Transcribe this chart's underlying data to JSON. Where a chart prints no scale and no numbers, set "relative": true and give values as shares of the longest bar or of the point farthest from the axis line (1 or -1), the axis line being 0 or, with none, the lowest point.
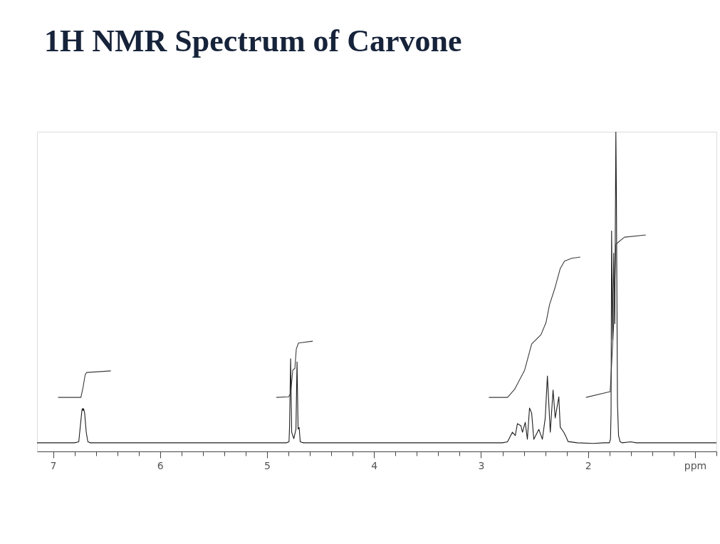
{
  "chart_data": {
    "type": "line",
    "title": "1H NMR Spectrum of Carvone",
    "relative": true,
    "xlim": [
      7.15,
      0.8
    ],
    "xticks": [
      7,
      {
        "value": 6.8,
        "label": null
      },
      {
        "value": 6.6,
        "label": null
      },
      {
        "value": 6.4,
        "label": null
      },
      {
        "value": 6.2,
        "label": null
      },
      6,
      {
        "value": 5.8,
        "label": null
      },
      {
        "value": 5.6,
        "label": null
      },
      {
        "value": 5.4,
        "label": null
      },
      {
        "value": 5.2,
        "label": null
      },
      5,
      {
        "value": 4.8,
        "label": null
      },
      {
        "value": 4.6,
        "label": null
      },
      {
        "value": 4.4,
        "label": null
      },
      {
        "value": 4.2,
        "label": null
      },
      4,
      {
        "value": 3.8,
        "label": null
      },
      {
        "value": 3.6,
        "label": null
      },
      {
        "value": 3.4,
        "label": null
      },
      {
        "value": 3.2,
        "label": null
      },
      3,
      {
        "value": 2.8,
        "label": null
      },
      {
        "value": 2.6,
        "label": null
      },
      {
        "value": 2.4,
        "label": null
      },
      {
        "value": 2.2,
        "label": null
      },
      2,
      {
        "value": 1.8,
        "label": null
      },
      {
        "value": 1.6,
        "label": null
      },
      {
        "value": 1.4,
        "label": null
      },
      {
        "value": 1.2,
        "label": null
      },
      {
        "value": 1,
        "label": "ppm"
      },
      {
        "value": 0.8,
        "label": null
      }
    ],
    "grid": false,
    "series": [
      {
        "color": "#1e1e1e",
        "x": [
          7.15,
          6.8,
          6.76,
          6.745,
          6.73,
          6.725,
          6.72,
          6.715,
          6.705,
          6.69,
          6.675,
          6.65,
          4.82,
          4.795,
          4.79,
          4.78,
          4.77,
          4.75,
          4.73,
          4.72,
          4.71,
          4.7,
          4.69,
          4.66,
          2.8,
          2.753,
          2.707,
          2.68,
          2.66,
          2.627,
          2.613,
          2.587,
          2.567,
          2.547,
          2.527,
          2.507,
          2.46,
          2.427,
          2.4,
          2.38,
          2.353,
          2.327,
          2.307,
          2.273,
          2.26,
          2.227,
          2.207,
          2.187,
          2.1,
          1.95,
          1.85,
          1.8,
          1.79,
          1.785,
          1.78,
          1.77,
          1.76,
          1.75,
          1.74,
          1.735,
          1.725,
          1.715,
          1.7,
          1.68,
          1.6,
          1.55,
          0.8
        ],
        "values": [
          0.027,
          0.027,
          0.03,
          0.08,
          0.13,
          0.134,
          0.128,
          0.134,
          0.12,
          0.06,
          0.03,
          0.027,
          0.027,
          0.03,
          0.075,
          0.29,
          0.06,
          0.04,
          0.07,
          0.28,
          0.07,
          0.075,
          0.03,
          0.027,
          0.027,
          0.03,
          0.06,
          0.05,
          0.087,
          0.08,
          0.06,
          0.091,
          0.038,
          0.136,
          0.12,
          0.038,
          0.069,
          0.038,
          0.105,
          0.236,
          0.06,
          0.192,
          0.105,
          0.171,
          0.076,
          0.06,
          0.047,
          0.031,
          0.027,
          0.025,
          0.027,
          0.027,
          0.04,
          0.12,
          0.69,
          0.35,
          0.62,
          0.4,
          1.0,
          0.8,
          0.15,
          0.05,
          0.03,
          0.027,
          0.03,
          0.027,
          0.027
        ]
      },
      {
        "color": "#3c3c3c",
        "x": [
          6.953,
          6.74,
          6.72,
          6.7,
          6.687,
          6.46
        ],
        "values": [
          0.169,
          0.169,
          0.2,
          0.24,
          0.247,
          0.252
        ]
      },
      {
        "color": "#3c3c3c",
        "x": [
          4.913,
          4.8,
          4.78,
          4.76,
          4.74,
          4.727,
          4.707,
          4.573
        ],
        "values": [
          0.169,
          0.171,
          0.18,
          0.254,
          0.26,
          0.32,
          0.339,
          0.345
        ]
      },
      {
        "color": "#3c3c3c",
        "x": [
          2.927,
          2.753,
          2.687,
          2.593,
          2.527,
          2.44,
          2.393,
          2.36,
          2.307,
          2.26,
          2.22,
          2.153,
          2.073
        ],
        "values": [
          0.169,
          0.169,
          0.194,
          0.254,
          0.336,
          0.365,
          0.403,
          0.459,
          0.514,
          0.572,
          0.595,
          0.604,
          0.608
        ]
      },
      {
        "color": "#3c3c3c",
        "x": [
          2.02,
          1.793,
          1.76,
          1.74,
          1.66,
          1.46
        ],
        "values": [
          0.169,
          0.187,
          0.4,
          0.648,
          0.67,
          0.677
        ]
      }
    ]
  }
}
